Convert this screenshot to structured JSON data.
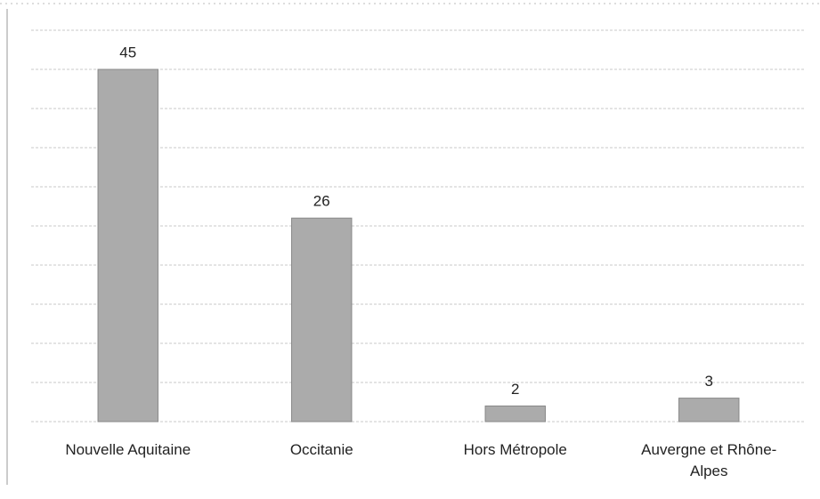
{
  "chart_data": {
    "type": "bar",
    "categories": [
      "Nouvelle Aquitaine",
      "Occitanie",
      "Hors Métropole",
      "Auvergne et Rhône-Alpes"
    ],
    "values": [
      45,
      26,
      2,
      3
    ],
    "color": "#ababab",
    "ylim": [
      0,
      50
    ],
    "yticks": [
      0,
      5,
      10,
      15,
      20,
      25,
      30,
      35,
      40,
      45,
      50
    ],
    "grid": true
  }
}
